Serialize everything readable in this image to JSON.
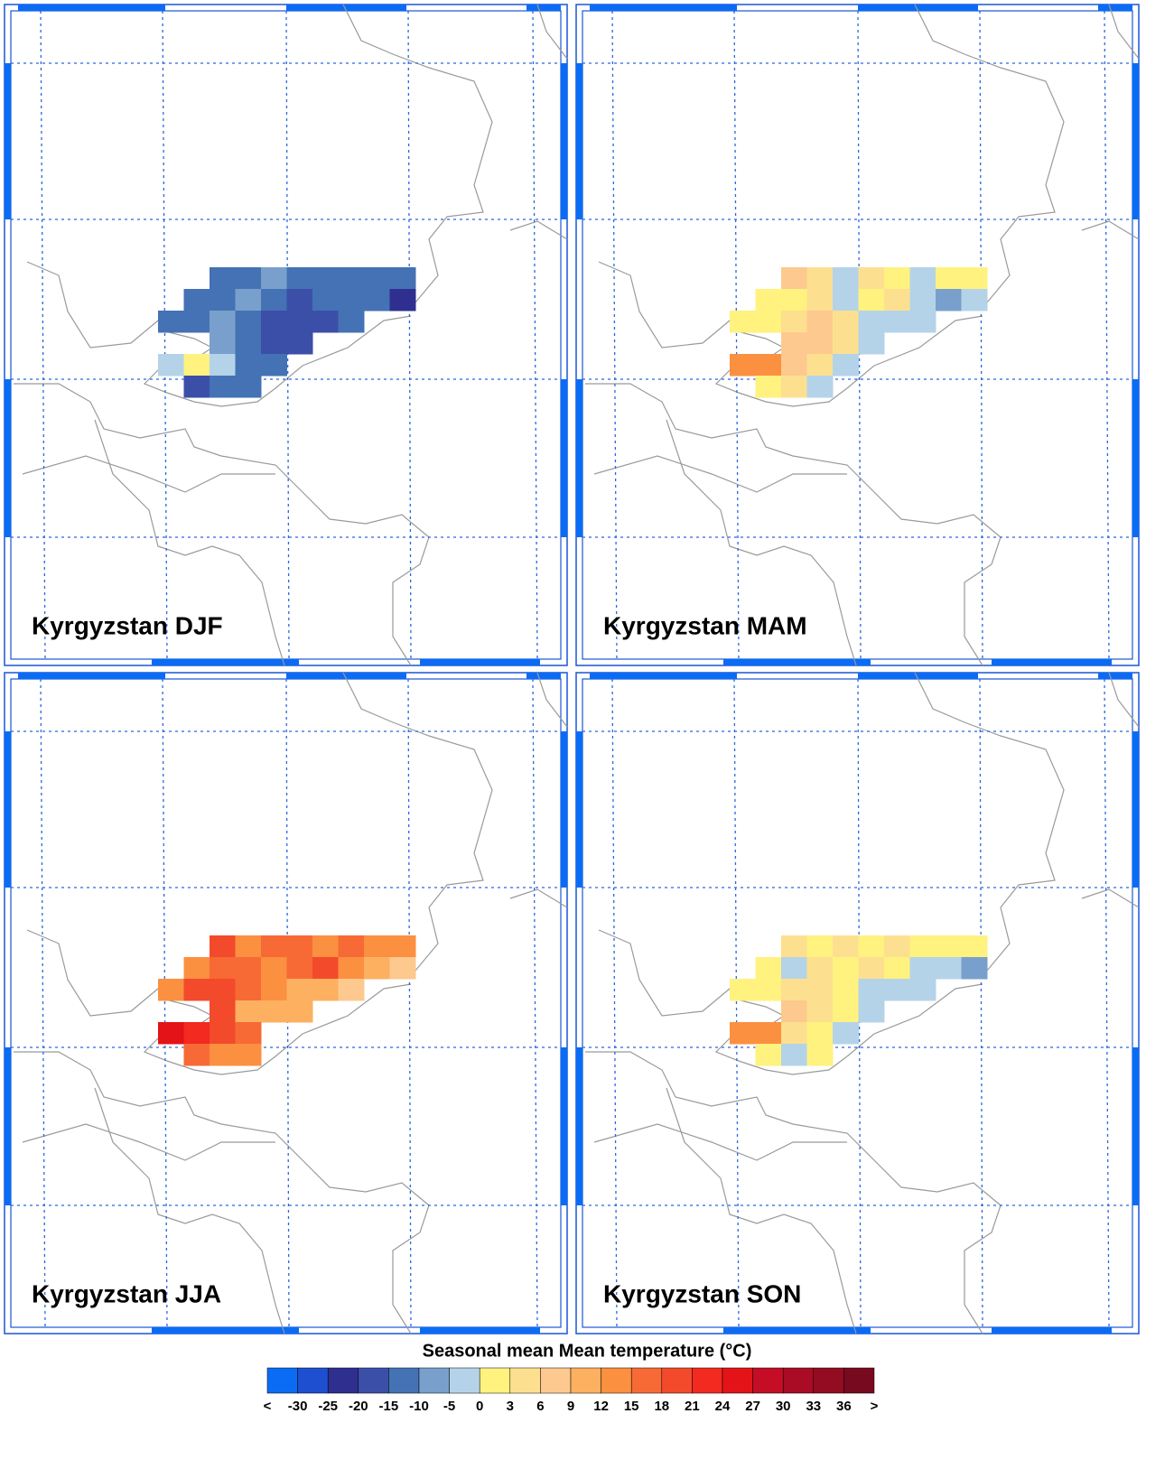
{
  "panels": [
    {
      "title": "Kyrgyzstan DJF",
      "cells": [
        [
          null,
          null,
          4,
          4,
          5,
          4,
          4,
          4,
          4,
          4
        ],
        [
          null,
          4,
          4,
          5,
          4,
          3,
          4,
          4,
          4,
          2
        ],
        [
          4,
          4,
          5,
          4,
          3,
          3,
          3,
          4,
          null,
          null
        ],
        [
          null,
          null,
          5,
          4,
          3,
          3,
          null,
          null,
          null,
          null
        ],
        [
          6,
          7,
          6,
          4,
          4,
          null,
          null,
          null,
          null,
          null
        ],
        [
          null,
          3,
          4,
          4,
          null,
          null,
          null,
          null,
          null,
          null
        ]
      ]
    },
    {
      "title": "Kyrgyzstan MAM",
      "cells": [
        [
          null,
          null,
          9,
          8,
          6,
          8,
          7,
          6,
          7,
          7
        ],
        [
          null,
          7,
          7,
          8,
          6,
          7,
          8,
          6,
          5,
          6
        ],
        [
          7,
          7,
          8,
          9,
          8,
          6,
          6,
          6,
          null,
          null
        ],
        [
          null,
          null,
          9,
          9,
          8,
          6,
          null,
          null,
          null,
          null
        ],
        [
          11,
          11,
          9,
          8,
          6,
          null,
          null,
          null,
          null,
          null
        ],
        [
          null,
          7,
          8,
          6,
          null,
          null,
          null,
          null,
          null,
          null
        ]
      ]
    },
    {
      "title": "Kyrgyzstan JJA",
      "cells": [
        [
          null,
          null,
          13,
          11,
          12,
          12,
          11,
          12,
          11,
          11
        ],
        [
          null,
          11,
          12,
          12,
          11,
          12,
          13,
          11,
          10,
          9
        ],
        [
          11,
          13,
          13,
          12,
          11,
          10,
          10,
          9,
          null,
          null
        ],
        [
          null,
          null,
          13,
          10,
          10,
          10,
          null,
          null,
          null,
          null
        ],
        [
          15,
          14,
          13,
          12,
          null,
          null,
          null,
          null,
          null,
          null
        ],
        [
          null,
          12,
          11,
          11,
          null,
          null,
          null,
          null,
          null,
          null
        ]
      ]
    },
    {
      "title": "Kyrgyzstan SON",
      "cells": [
        [
          null,
          null,
          8,
          7,
          8,
          7,
          8,
          7,
          7,
          7
        ],
        [
          null,
          7,
          6,
          8,
          7,
          8,
          7,
          6,
          6,
          5
        ],
        [
          7,
          7,
          8,
          8,
          7,
          6,
          6,
          6,
          null,
          null
        ],
        [
          null,
          null,
          9,
          8,
          7,
          6,
          null,
          null,
          null,
          null
        ],
        [
          11,
          11,
          8,
          7,
          6,
          null,
          null,
          null,
          null,
          null
        ],
        [
          null,
          7,
          6,
          7,
          null,
          null,
          null,
          null,
          null,
          null
        ]
      ]
    }
  ],
  "colorbar": {
    "title": "Seasonal mean Mean temperature (°C)",
    "ticks": [
      "<",
      -30,
      -25,
      -20,
      -15,
      -10,
      -5,
      0,
      3,
      6,
      9,
      12,
      15,
      18,
      21,
      24,
      27,
      30,
      33,
      36,
      ">"
    ],
    "colors": [
      "#0a6cf5",
      "#1e4fd0",
      "#2e2f8f",
      "#3c4fa8",
      "#4472b4",
      "#79a0cc",
      "#b5d3e8",
      "#fff27f",
      "#fde08f",
      "#fdc98f",
      "#fdb060",
      "#fb9040",
      "#f76a35",
      "#f34a2c",
      "#f22a1f",
      "#e31317",
      "#c50d25",
      "#a90c24",
      "#930c22",
      "#780a1f"
    ]
  }
}
